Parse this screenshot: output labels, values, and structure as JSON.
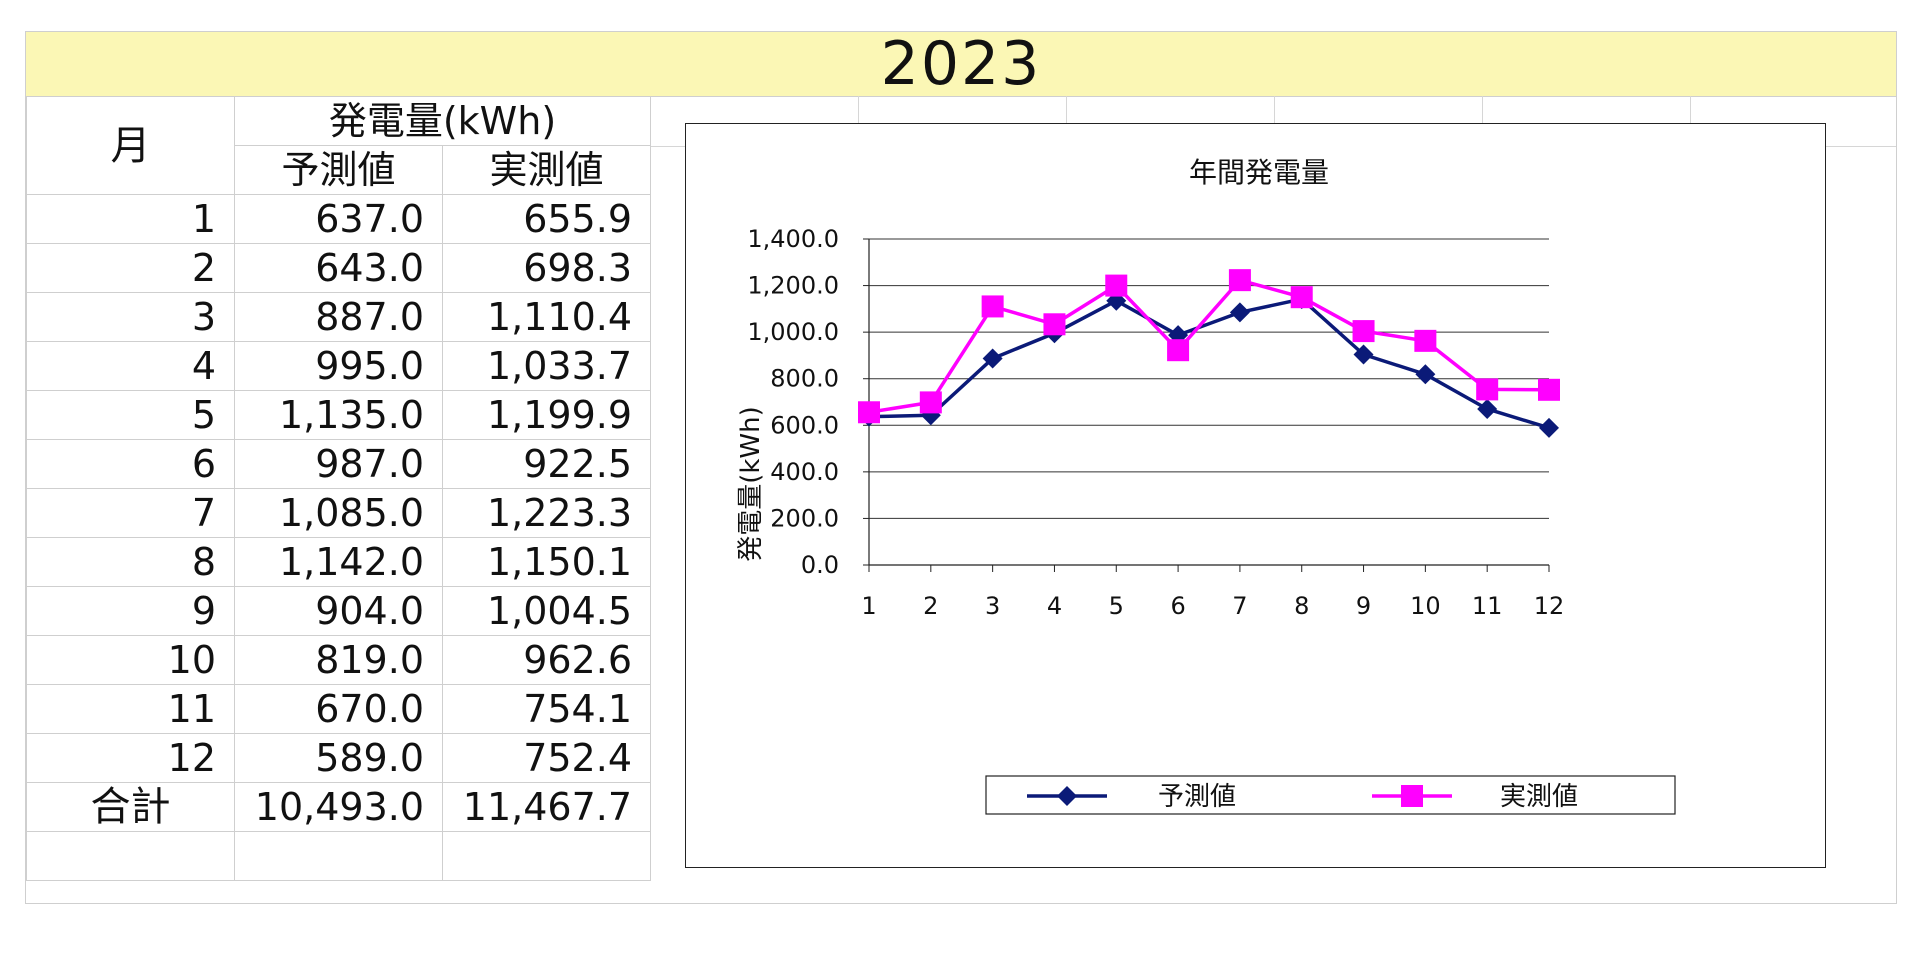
{
  "title": "2023",
  "table": {
    "month_header": "月",
    "group_header": "発電量(kWh)",
    "col_forecast": "予測値",
    "col_actual": "実測値",
    "rows": [
      {
        "month": "1",
        "forecast": "637.0",
        "actual": "655.9"
      },
      {
        "month": "2",
        "forecast": "643.0",
        "actual": "698.3"
      },
      {
        "month": "3",
        "forecast": "887.0",
        "actual": "1,110.4"
      },
      {
        "month": "4",
        "forecast": "995.0",
        "actual": "1,033.7"
      },
      {
        "month": "5",
        "forecast": "1,135.0",
        "actual": "1,199.9"
      },
      {
        "month": "6",
        "forecast": "987.0",
        "actual": "922.5"
      },
      {
        "month": "7",
        "forecast": "1,085.0",
        "actual": "1,223.3"
      },
      {
        "month": "8",
        "forecast": "1,142.0",
        "actual": "1,150.1"
      },
      {
        "month": "9",
        "forecast": "904.0",
        "actual": "1,004.5"
      },
      {
        "month": "10",
        "forecast": "819.0",
        "actual": "962.6"
      },
      {
        "month": "11",
        "forecast": "670.0",
        "actual": "754.1"
      },
      {
        "month": "12",
        "forecast": "589.0",
        "actual": "752.4"
      }
    ],
    "total_label": "合計",
    "total_forecast": "10,493.0",
    "total_actual": "11,467.7"
  },
  "chart_data": {
    "type": "line",
    "title": "年間発電量",
    "ylabel": "発電量(kWh)",
    "xlabel": "",
    "categories": [
      "1",
      "2",
      "3",
      "4",
      "5",
      "6",
      "7",
      "8",
      "9",
      "10",
      "11",
      "12"
    ],
    "ylim": [
      0,
      1400
    ],
    "yticks": [
      0,
      200,
      400,
      600,
      800,
      1000,
      1200,
      1400
    ],
    "ytick_labels": [
      "0.0",
      "200.0",
      "400.0",
      "600.0",
      "800.0",
      "1,000.0",
      "1,200.0",
      "1,400.0"
    ],
    "grid": true,
    "legend_position": "bottom",
    "series": [
      {
        "name": "予測値",
        "color": "#0b1a78",
        "marker": "diamond",
        "values": [
          637.0,
          643.0,
          887.0,
          995.0,
          1135.0,
          987.0,
          1085.0,
          1142.0,
          904.0,
          819.0,
          670.0,
          589.0
        ]
      },
      {
        "name": "実測値",
        "color": "#ff00ff",
        "marker": "square",
        "values": [
          655.9,
          698.3,
          1110.4,
          1033.7,
          1199.9,
          922.5,
          1223.3,
          1150.1,
          1004.5,
          962.6,
          754.1,
          752.4
        ]
      }
    ]
  }
}
